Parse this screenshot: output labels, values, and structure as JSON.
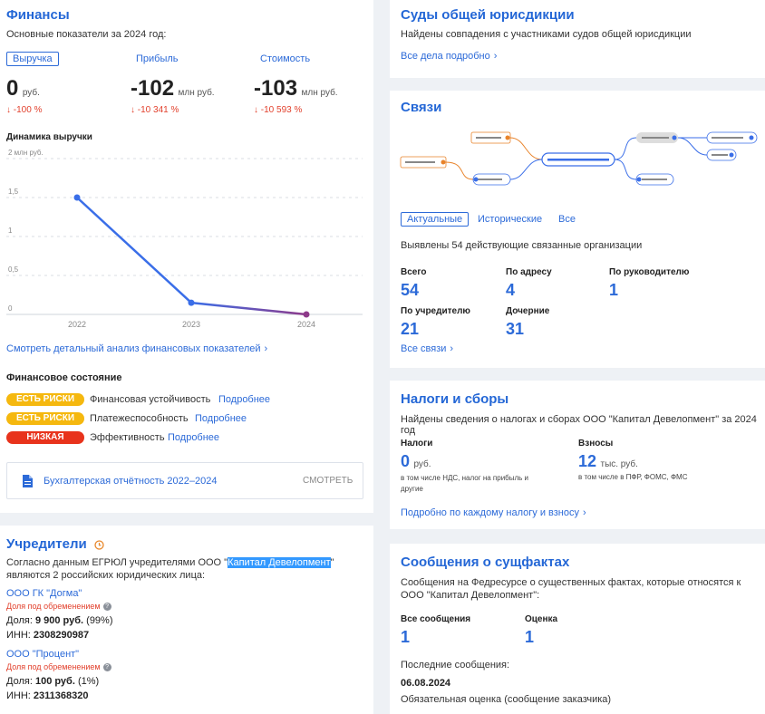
{
  "finance": {
    "title": "Финансы",
    "subtitle": "Основные показатели за 2024 год:",
    "metrics": [
      {
        "label": "Выручка",
        "value": "0",
        "unit": "руб.",
        "change": "↓ -100 %"
      },
      {
        "label": "Прибыль",
        "value": "-102",
        "unit": "млн руб.",
        "change": "↓ -10 341 %"
      },
      {
        "label": "Стоимость",
        "value": "-103",
        "unit": "млн руб.",
        "change": "↓ -10 593 %"
      }
    ],
    "chart_title": "Динамика выручки",
    "detail_link": "Смотреть детальный анализ финансовых показателей",
    "state_title": "Финансовое состояние",
    "states": [
      {
        "badge": "ЕСТЬ РИСКИ",
        "color": "#f5b80f",
        "text": "Финансовая устойчивость",
        "more": "Подробнее"
      },
      {
        "badge": "ЕСТЬ РИСКИ",
        "color": "#f5b80f",
        "text": "Платежеспособность",
        "more": "Подробнее"
      },
      {
        "badge": "НИЗКАЯ",
        "color": "#e8331c",
        "text": "Эффективность",
        "more": "Подробнее"
      }
    ],
    "report_label": "Бухгалтерская отчётность 2022–2024",
    "report_button": "СМОТРЕТЬ"
  },
  "chart_data": {
    "type": "line",
    "title": "Динамика выручки",
    "x": [
      "2022",
      "2023",
      "2024"
    ],
    "series": [
      {
        "values": [
          1.5,
          0.15,
          0
        ]
      }
    ],
    "y_ticks": [
      "2 млн руб.",
      "1,5",
      "1",
      "0,5",
      "0"
    ],
    "ylim": [
      0,
      2
    ],
    "grid": true,
    "colors": {
      "line": "#3a6ee8",
      "last_point": "#8e3a8a"
    }
  },
  "founders": {
    "title": "Учредители",
    "text_before": "Согласно данным ЕГРЮЛ учредителями ООО \"",
    "highlight": "Капитал Девелопмент",
    "text_after": "\" являются 2 российских юридических лица:",
    "items": [
      {
        "name": "ООО ГК \"Догма\"",
        "note": "Доля под обременением",
        "share_label": "Доля:",
        "share_value": "9 900 руб.",
        "share_pct": "(99%)",
        "inn_label": "ИНН:",
        "inn": "2308290987"
      },
      {
        "name": "ООО \"Процент\"",
        "note": "Доля под обременением",
        "share_label": "Доля:",
        "share_value": "100 руб.",
        "share_pct": "(1%)",
        "inn_label": "ИНН:",
        "inn": "2311368320"
      }
    ]
  },
  "courts": {
    "title": "Суды общей юрисдикции",
    "subtitle": "Найдены совпадения с участниками судов общей юрисдикции",
    "link": "Все дела подробно"
  },
  "links": {
    "title": "Связи",
    "tabs": [
      "Актуальные",
      "Исторические",
      "Все"
    ],
    "found_text": "Выявлены 54 действующие связанные организации",
    "stats": [
      {
        "label": "Всего",
        "value": "54"
      },
      {
        "label": "По адресу",
        "value": "4"
      },
      {
        "label": "По руководителю",
        "value": "1"
      },
      {
        "label": "По учредителю",
        "value": "21"
      },
      {
        "label": "Дочерние",
        "value": "31"
      }
    ],
    "all_link": "Все связи"
  },
  "taxes": {
    "title": "Налоги и сборы",
    "subtitle": "Найдены сведения о налогах и сборах ООО \"Капитал Девелопмент\" за 2024 год",
    "taxes_label": "Налоги",
    "taxes_value": "0",
    "taxes_unit": "руб.",
    "taxes_note": "в том числе НДС, налог на прибыль и другие",
    "fees_label": "Взносы",
    "fees_value": "12",
    "fees_unit": "тыс. руб.",
    "fees_note": "в том числе в ПФР, ФОМС, ФМС",
    "link": "Подробно по каждому налогу и взносу"
  },
  "facts": {
    "title": "Сообщения о сущфактах",
    "subtitle": "Сообщения на Федресурсе о существенных фактах, которые относятся к ООО \"Капитал Девелопмент\":",
    "all_label": "Все сообщения",
    "all_value": "1",
    "eval_label": "Оценка",
    "eval_value": "1",
    "last_label": "Последние сообщения:",
    "last_date": "06.08.2024",
    "last_text": "Обязательная оценка (сообщение заказчика)"
  }
}
